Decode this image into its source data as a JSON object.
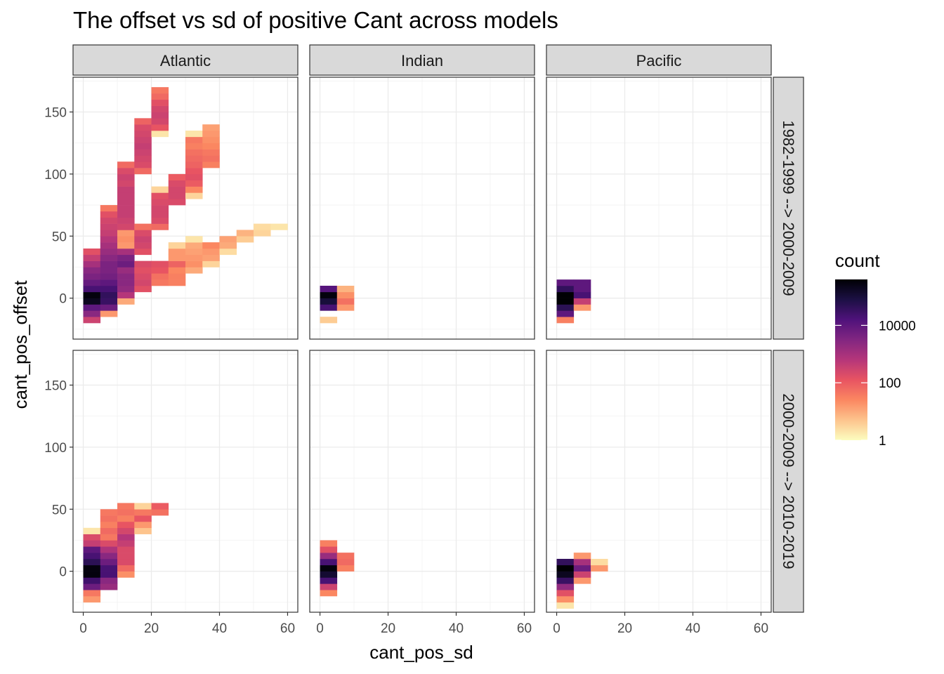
{
  "chart_data": {
    "type": "heatmap",
    "title": "The offset vs sd of positive Cant across models",
    "xlabel": "cant_pos_sd",
    "ylabel": "cant_pos_offset",
    "xlim": [
      -3,
      63
    ],
    "ylim": [
      -33,
      178
    ],
    "x_ticks": [
      0,
      20,
      40,
      60
    ],
    "y_ticks": [
      0,
      50,
      100,
      150
    ],
    "x_tick_labels": [
      "0",
      "20",
      "40",
      "60"
    ],
    "y_tick_labels": [
      "0",
      "50",
      "100",
      "150"
    ],
    "bin_width_x": 5,
    "bin_width_y": 5,
    "columns": [
      "Atlantic",
      "Indian",
      "Pacific"
    ],
    "rows": [
      "1982-1999 --> 2000-2009",
      "2000-2009 --> 2010-2019"
    ],
    "grid": true,
    "legend": {
      "title": "count",
      "position": "right",
      "scale": "log10",
      "breaks": [
        1,
        100,
        10000
      ],
      "break_labels": [
        "1",
        "100",
        "10000"
      ],
      "max_log": 5.6,
      "palette": [
        "#fcfdbf",
        "#fdc48d",
        "#fb8761",
        "#e85462",
        "#b5367a",
        "#822681",
        "#4f127b",
        "#1c1044",
        "#000004"
      ]
    },
    "panels": [
      {
        "column": "Atlantic",
        "row": "1982-1999 --> 2000-2009",
        "cells": [
          [
            2.5,
            -17.5,
            2.5
          ],
          [
            2.5,
            -12.5,
            3.4
          ],
          [
            2.5,
            -7.5,
            4
          ],
          [
            2.5,
            -2.5,
            5.3
          ],
          [
            2.5,
            2.5,
            5.5
          ],
          [
            2.5,
            7.5,
            4.3
          ],
          [
            2.5,
            12.5,
            3.9
          ],
          [
            2.5,
            17.5,
            3.6
          ],
          [
            2.5,
            22.5,
            3.4
          ],
          [
            2.5,
            27.5,
            3
          ],
          [
            2.5,
            32.5,
            2.6
          ],
          [
            2.5,
            37.5,
            2.2
          ],
          [
            7.5,
            -12.5,
            1.2
          ],
          [
            7.5,
            -7.5,
            3.8
          ],
          [
            7.5,
            -2.5,
            4.5
          ],
          [
            7.5,
            2.5,
            4.6
          ],
          [
            7.5,
            7.5,
            4.3
          ],
          [
            7.5,
            12.5,
            4
          ],
          [
            7.5,
            17.5,
            3.7
          ],
          [
            7.5,
            22.5,
            3.6
          ],
          [
            7.5,
            27.5,
            3.6
          ],
          [
            7.5,
            32.5,
            3.4
          ],
          [
            7.5,
            37.5,
            3.2
          ],
          [
            7.5,
            42.5,
            3
          ],
          [
            7.5,
            47.5,
            2.8
          ],
          [
            7.5,
            52.5,
            2.6
          ],
          [
            7.5,
            57.5,
            2.5
          ],
          [
            7.5,
            62.5,
            2.4
          ],
          [
            7.5,
            67.5,
            2.2
          ],
          [
            7.5,
            72.5,
            1.6
          ],
          [
            12.5,
            -2.5,
            1
          ],
          [
            12.5,
            2.5,
            2.8
          ],
          [
            12.5,
            7.5,
            3.3
          ],
          [
            12.5,
            12.5,
            3.4
          ],
          [
            12.5,
            17.5,
            3.4
          ],
          [
            12.5,
            22.5,
            3.2
          ],
          [
            12.5,
            27.5,
            3.8
          ],
          [
            12.5,
            32.5,
            3.6
          ],
          [
            12.5,
            37.5,
            3
          ],
          [
            12.5,
            42.5,
            1.2
          ],
          [
            12.5,
            47.5,
            1.3
          ],
          [
            12.5,
            52.5,
            1.2
          ],
          [
            12.5,
            57.5,
            2.4
          ],
          [
            12.5,
            62.5,
            2.5
          ],
          [
            12.5,
            67.5,
            2.6
          ],
          [
            12.5,
            72.5,
            2.6
          ],
          [
            12.5,
            77.5,
            2.6
          ],
          [
            12.5,
            82.5,
            2.6
          ],
          [
            12.5,
            87.5,
            2.6
          ],
          [
            12.5,
            92.5,
            2.4
          ],
          [
            12.5,
            97.5,
            2.5
          ],
          [
            12.5,
            102.5,
            2.3
          ],
          [
            12.5,
            107.5,
            1.8
          ],
          [
            17.5,
            7.5,
            2.2
          ],
          [
            17.5,
            12.5,
            2.4
          ],
          [
            17.5,
            17.5,
            2.3
          ],
          [
            17.5,
            22.5,
            2.2
          ],
          [
            17.5,
            27.5,
            2.3
          ],
          [
            17.5,
            37.5,
            2.2
          ],
          [
            17.5,
            42.5,
            2.4
          ],
          [
            17.5,
            47.5,
            2.5
          ],
          [
            17.5,
            52.5,
            2.3
          ],
          [
            17.5,
            57.5,
            1.7
          ],
          [
            17.5,
            102.5,
            1.8
          ],
          [
            17.5,
            107.5,
            2.3
          ],
          [
            17.5,
            112.5,
            2.4
          ],
          [
            17.5,
            117.5,
            2.5
          ],
          [
            17.5,
            122.5,
            2.6
          ],
          [
            17.5,
            127.5,
            2.5
          ],
          [
            17.5,
            132.5,
            2.4
          ],
          [
            17.5,
            137.5,
            2.3
          ],
          [
            17.5,
            142.5,
            1.9
          ],
          [
            22.5,
            12.5,
            1.6
          ],
          [
            22.5,
            17.5,
            1.7
          ],
          [
            22.5,
            22.5,
            2.1
          ],
          [
            22.5,
            27.5,
            2.2
          ],
          [
            22.5,
            57.5,
            1.8
          ],
          [
            22.5,
            62.5,
            2.3
          ],
          [
            22.5,
            67.5,
            2.4
          ],
          [
            22.5,
            72.5,
            2.4
          ],
          [
            22.5,
            77.5,
            2.3
          ],
          [
            22.5,
            82.5,
            2.2
          ],
          [
            22.5,
            87.5,
            0.5
          ],
          [
            22.5,
            132.5,
            0.3
          ],
          [
            22.5,
            137.5,
            2.1
          ],
          [
            22.5,
            142.5,
            2.4
          ],
          [
            22.5,
            147.5,
            2.5
          ],
          [
            22.5,
            152.5,
            2.4
          ],
          [
            22.5,
            157.5,
            2.2
          ],
          [
            22.5,
            162.5,
            1.8
          ],
          [
            22.5,
            167.5,
            1.6
          ],
          [
            27.5,
            12.5,
            1.5
          ],
          [
            27.5,
            17.5,
            1.5
          ],
          [
            27.5,
            22.5,
            1.4
          ],
          [
            27.5,
            27.5,
            1.9
          ],
          [
            27.5,
            32.5,
            1.2
          ],
          [
            27.5,
            37.5,
            1.2
          ],
          [
            27.5,
            42.5,
            0.5
          ],
          [
            27.5,
            77.5,
            2.3
          ],
          [
            27.5,
            82.5,
            2.4
          ],
          [
            27.5,
            87.5,
            2.4
          ],
          [
            27.5,
            92.5,
            2.3
          ],
          [
            27.5,
            97.5,
            2
          ],
          [
            32.5,
            22.5,
            1
          ],
          [
            32.5,
            27.5,
            1.3
          ],
          [
            32.5,
            32.5,
            1.2
          ],
          [
            32.5,
            37.5,
            1.1
          ],
          [
            32.5,
            42.5,
            1
          ],
          [
            32.5,
            47.5,
            0.3
          ],
          [
            32.5,
            82.5,
            0.5
          ],
          [
            32.5,
            87.5,
            1.4
          ],
          [
            32.5,
            92.5,
            2
          ],
          [
            32.5,
            97.5,
            2.2
          ],
          [
            32.5,
            102.5,
            2.1
          ],
          [
            32.5,
            107.5,
            1.9
          ],
          [
            32.5,
            112.5,
            1.8
          ],
          [
            32.5,
            117.5,
            1.7
          ],
          [
            32.5,
            122.5,
            1.5
          ],
          [
            32.5,
            127.5,
            1.6
          ],
          [
            32.5,
            132.5,
            0.3
          ],
          [
            37.5,
            27.5,
            0.5
          ],
          [
            37.5,
            32.5,
            1.1
          ],
          [
            37.5,
            37.5,
            1.2
          ],
          [
            37.5,
            42.5,
            1.4
          ],
          [
            37.5,
            107.5,
            1.5
          ],
          [
            37.5,
            112.5,
            1.7
          ],
          [
            37.5,
            117.5,
            1.6
          ],
          [
            37.5,
            122.5,
            1.4
          ],
          [
            37.5,
            127.5,
            1.3
          ],
          [
            37.5,
            132.5,
            1.2
          ],
          [
            37.5,
            137.5,
            1.1
          ],
          [
            42.5,
            37.5,
            0.4
          ],
          [
            42.5,
            42.5,
            1
          ],
          [
            42.5,
            47.5,
            1.1
          ],
          [
            47.5,
            47.5,
            0.6
          ],
          [
            47.5,
            52.5,
            0.9
          ],
          [
            52.5,
            52.5,
            0.5
          ],
          [
            52.5,
            57.5,
            0.4
          ],
          [
            57.5,
            57.5,
            0.3
          ]
        ]
      },
      {
        "column": "Indian",
        "row": "1982-1999 --> 2000-2009",
        "cells": [
          [
            2.5,
            -17.5,
            0.6
          ],
          [
            2.5,
            -7.5,
            4.3
          ],
          [
            2.5,
            -2.5,
            5
          ],
          [
            2.5,
            2.5,
            5.5
          ],
          [
            2.5,
            7.5,
            4.1
          ],
          [
            7.5,
            -7.5,
            1.2
          ],
          [
            7.5,
            -2.5,
            1.7
          ],
          [
            7.5,
            2.5,
            1.3
          ],
          [
            7.5,
            7.5,
            0.9
          ]
        ]
      },
      {
        "column": "Pacific",
        "row": "1982-1999 --> 2000-2009",
        "cells": [
          [
            2.5,
            -17.5,
            1.5
          ],
          [
            2.5,
            -12.5,
            4
          ],
          [
            2.5,
            -7.5,
            4.7
          ],
          [
            2.5,
            -2.5,
            5.6
          ],
          [
            2.5,
            2.5,
            5.6
          ],
          [
            2.5,
            7.5,
            4.6
          ],
          [
            2.5,
            12.5,
            4
          ],
          [
            7.5,
            -7.5,
            1.2
          ],
          [
            7.5,
            -2.5,
            2.6
          ],
          [
            7.5,
            2.5,
            4.3
          ],
          [
            7.5,
            7.5,
            4
          ],
          [
            7.5,
            12.5,
            4
          ]
        ]
      },
      {
        "column": "Atlantic",
        "row": "2000-2009 --> 2010-2019",
        "cells": [
          [
            2.5,
            -22.5,
            1.2
          ],
          [
            2.5,
            -17.5,
            1.6
          ],
          [
            2.5,
            -12.5,
            3.8
          ],
          [
            2.5,
            -7.5,
            4.4
          ],
          [
            2.5,
            -2.5,
            5.5
          ],
          [
            2.5,
            2.5,
            5.5
          ],
          [
            2.5,
            7.5,
            4.7
          ],
          [
            2.5,
            12.5,
            4.3
          ],
          [
            2.5,
            17.5,
            4
          ],
          [
            2.5,
            22.5,
            2.6
          ],
          [
            2.5,
            27.5,
            2.3
          ],
          [
            2.5,
            32.5,
            0.3
          ],
          [
            7.5,
            -12.5,
            3.2
          ],
          [
            7.5,
            -7.5,
            3.4
          ],
          [
            7.5,
            -2.5,
            4.3
          ],
          [
            7.5,
            2.5,
            4.3
          ],
          [
            7.5,
            7.5,
            3.8
          ],
          [
            7.5,
            12.5,
            3.4
          ],
          [
            7.5,
            17.5,
            2.9
          ],
          [
            7.5,
            22.5,
            2.3
          ],
          [
            7.5,
            27.5,
            1.6
          ],
          [
            7.5,
            32.5,
            1.8
          ],
          [
            7.5,
            37.5,
            1.5
          ],
          [
            7.5,
            42.5,
            1.7
          ],
          [
            7.5,
            47.5,
            1.6
          ],
          [
            12.5,
            -2.5,
            1.3
          ],
          [
            12.5,
            2.5,
            1.8
          ],
          [
            12.5,
            7.5,
            2.3
          ],
          [
            12.5,
            12.5,
            2.3
          ],
          [
            12.5,
            17.5,
            2.3
          ],
          [
            12.5,
            22.5,
            2.6
          ],
          [
            12.5,
            27.5,
            2.8
          ],
          [
            12.5,
            32.5,
            2.4
          ],
          [
            12.5,
            37.5,
            2.1
          ],
          [
            12.5,
            42.5,
            1.5
          ],
          [
            12.5,
            47.5,
            1.7
          ],
          [
            12.5,
            52.5,
            1.6
          ],
          [
            17.5,
            32.5,
            0.7
          ],
          [
            17.5,
            37.5,
            1.2
          ],
          [
            17.5,
            42.5,
            2.1
          ],
          [
            17.5,
            47.5,
            1.6
          ],
          [
            17.5,
            52.5,
            0.5
          ],
          [
            22.5,
            47.5,
            1.7
          ],
          [
            22.5,
            52.5,
            2
          ]
        ]
      },
      {
        "column": "Indian",
        "row": "2000-2009 --> 2010-2019",
        "cells": [
          [
            2.5,
            -17.5,
            1.4
          ],
          [
            2.5,
            -12.5,
            2.5
          ],
          [
            2.5,
            -7.5,
            4.3
          ],
          [
            2.5,
            -2.5,
            5.1
          ],
          [
            2.5,
            2.5,
            5.5
          ],
          [
            2.5,
            7.5,
            4.3
          ],
          [
            2.5,
            12.5,
            3.2
          ],
          [
            2.5,
            17.5,
            2.2
          ],
          [
            2.5,
            22.5,
            1.5
          ],
          [
            7.5,
            2.5,
            1.5
          ],
          [
            7.5,
            7.5,
            1.8
          ],
          [
            7.5,
            12.5,
            1.7
          ]
        ]
      },
      {
        "column": "Pacific",
        "row": "2000-2009 --> 2010-2019",
        "cells": [
          [
            2.5,
            -27.5,
            0.3
          ],
          [
            2.5,
            -22.5,
            1.3
          ],
          [
            2.5,
            -17.5,
            2.2
          ],
          [
            2.5,
            -12.5,
            3.3
          ],
          [
            2.5,
            -7.5,
            4.5
          ],
          [
            2.5,
            -2.5,
            5.3
          ],
          [
            2.5,
            2.5,
            5.6
          ],
          [
            2.5,
            7.5,
            4.6
          ],
          [
            7.5,
            -7.5,
            1.2
          ],
          [
            7.5,
            -2.5,
            2.5
          ],
          [
            7.5,
            2.5,
            3.8
          ],
          [
            7.5,
            7.5,
            3
          ],
          [
            7.5,
            12.5,
            1.2
          ],
          [
            12.5,
            2.5,
            1.2
          ],
          [
            12.5,
            7.5,
            0.4
          ]
        ]
      }
    ]
  }
}
